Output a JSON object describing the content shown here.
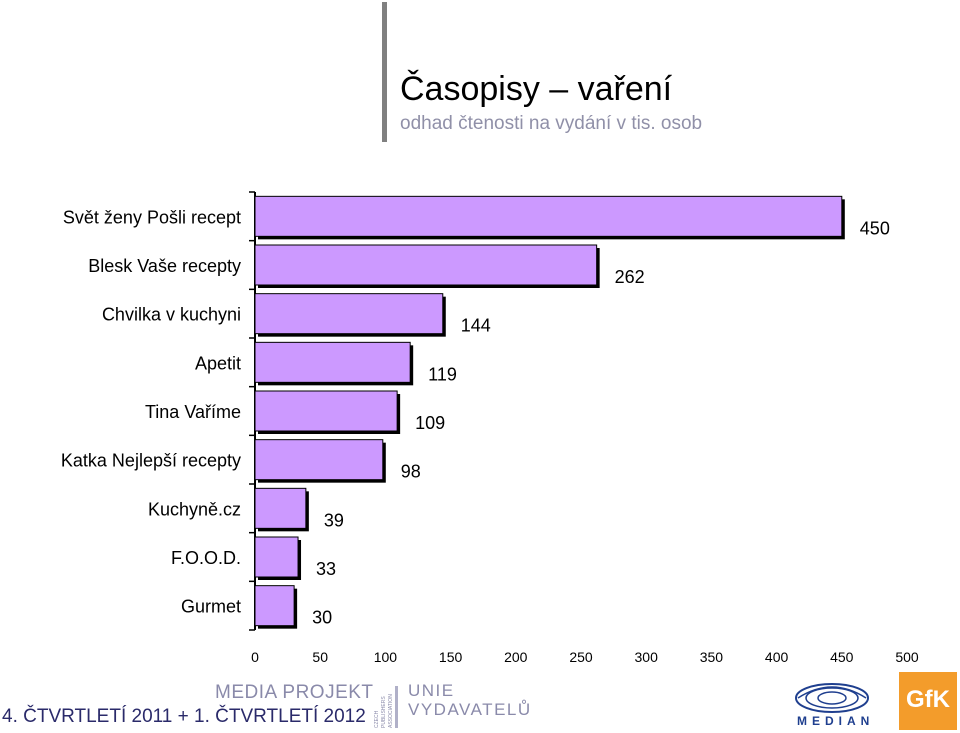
{
  "header": {
    "title": "Časopisy – vaření",
    "subtitle": "odhad čtenosti na vydání v tis. osob"
  },
  "chart_data": {
    "type": "bar",
    "orientation": "horizontal",
    "categories": [
      "Svět ženy Pošli recept",
      "Blesk Vaše recepty",
      "Chvilka v kuchyni",
      "Apetit",
      "Tina Vaříme",
      "Katka Nejlepší recepty",
      "Kuchyně.cz",
      "F.O.O.D.",
      "Gurmet"
    ],
    "values": [
      450,
      262,
      144,
      119,
      109,
      98,
      39,
      33,
      30
    ],
    "xlim": [
      0,
      500
    ],
    "xticks": [
      "0",
      "50",
      "100",
      "150",
      "200",
      "250",
      "300",
      "350",
      "400",
      "450",
      "500"
    ],
    "bar_color": "#cc99ff",
    "grid": false,
    "legend": "none"
  },
  "footer": {
    "period": "4. ČTVRTLETÍ 2011 + 1. ČTVRTLETÍ 2012",
    "media_projekt": "MEDIA PROJEKT",
    "cpa_lines": [
      "CZECH",
      "PUBLISHERS",
      "ASSOCIATION"
    ],
    "unie_line1": "UNIE",
    "unie_line2": "VYDAVATELŮ",
    "median": "MEDIAN",
    "gfk": "GfK"
  }
}
